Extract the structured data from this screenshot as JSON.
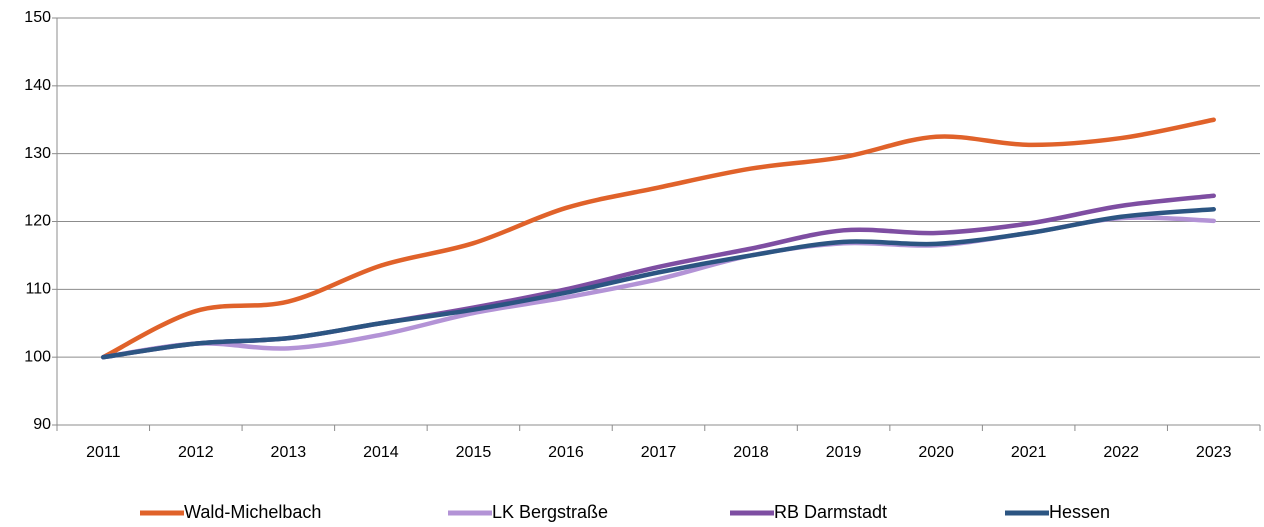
{
  "chart_data": {
    "type": "line",
    "categories": [
      "2011",
      "2012",
      "2013",
      "2014",
      "2015",
      "2016",
      "2017",
      "2018",
      "2019",
      "2020",
      "2021",
      "2022",
      "2023"
    ],
    "series": [
      {
        "name": "Wald-Michelbach",
        "color": "#e0622a",
        "values": [
          100,
          106.8,
          108.2,
          113.5,
          116.8,
          122,
          125,
          127.8,
          129.5,
          132.5,
          131.3,
          132.3,
          135
        ]
      },
      {
        "name": "LK Bergstraße",
        "color": "#b393d6",
        "values": [
          100,
          102,
          101.3,
          103.3,
          106.5,
          108.8,
          111.5,
          115,
          116.8,
          116.5,
          118.3,
          120.5,
          120.1
        ]
      },
      {
        "name": "RB Darmstadt",
        "color": "#7e4ea2",
        "values": [
          100,
          102,
          102.8,
          105,
          107.3,
          110,
          113.3,
          116,
          118.7,
          118.3,
          119.7,
          122.3,
          123.8
        ]
      },
      {
        "name": "Hessen",
        "color": "#2c5582",
        "values": [
          100,
          102,
          102.8,
          105,
          107,
          109.5,
          112.5,
          115,
          117,
          116.7,
          118.3,
          120.7,
          121.8
        ]
      }
    ],
    "ylim": [
      90,
      150
    ],
    "yticks": [
      90,
      100,
      110,
      120,
      130,
      140,
      150
    ],
    "grid": true,
    "legend": "bottom"
  }
}
